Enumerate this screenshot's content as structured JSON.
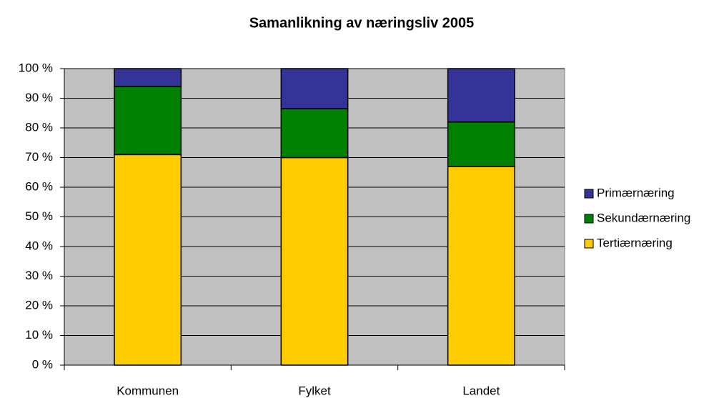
{
  "chart_data": {
    "type": "stacked_bar",
    "title": "Samanlikning av næringsliv 2005",
    "categories": [
      "Kommunen",
      "Fylket",
      "Landet"
    ],
    "series": [
      {
        "name": "Primærnæring",
        "color": "#333399",
        "values": [
          6,
          13.5,
          18
        ]
      },
      {
        "name": "Sekundærnæring",
        "color": "#008000",
        "values": [
          23,
          16.5,
          15
        ]
      },
      {
        "name": "Tertiærnæring",
        "color": "#ffcc00",
        "values": [
          71,
          70,
          67
        ]
      }
    ],
    "ylim": [
      0,
      100
    ],
    "yticks": [
      {
        "value": 0,
        "label": "0 %"
      },
      {
        "value": 10,
        "label": "10 %"
      },
      {
        "value": 20,
        "label": "20 %"
      },
      {
        "value": 30,
        "label": "30 %"
      },
      {
        "value": 40,
        "label": "40 %"
      },
      {
        "value": 50,
        "label": "50 %"
      },
      {
        "value": 60,
        "label": "60 %"
      },
      {
        "value": 70,
        "label": "70 %"
      },
      {
        "value": 80,
        "label": "80 %"
      },
      {
        "value": 90,
        "label": "90 %"
      },
      {
        "value": 100,
        "label": "100 %"
      }
    ],
    "grid": true,
    "legend": "right"
  }
}
